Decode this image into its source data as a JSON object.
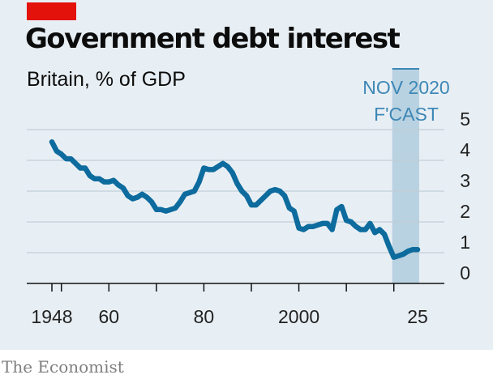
{
  "header": {
    "title": "Government debt interest",
    "subtitle": "Britain, % of GDP"
  },
  "footer": {
    "brand": "The Economist"
  },
  "colors": {
    "background": "#e8eff4",
    "line": "#0d6b9e",
    "forecast_band": "#a9c8db",
    "forecast_text": "#3d87b6",
    "brand_red": "#e3120b",
    "grid": "#c2cdd6"
  },
  "chart_data": {
    "type": "line",
    "title": "Government debt interest",
    "subtitle": "Britain, % of GDP",
    "xlabel": "",
    "ylabel": "",
    "xlim": [
      1946,
      2028
    ],
    "ylim": [
      0,
      5
    ],
    "y_ticks": [
      "0",
      "1",
      "2",
      "3",
      "4",
      "5"
    ],
    "x_ticks": [
      {
        "value": 1948,
        "label": "1948"
      },
      {
        "value": 1960,
        "label": "60"
      },
      {
        "value": 1980,
        "label": "80"
      },
      {
        "value": 2000,
        "label": "2000"
      },
      {
        "value": 2025,
        "label": "25"
      }
    ],
    "grid": true,
    "forecast": {
      "start": 2020,
      "end": 2025,
      "label_line1": "NOV 2020",
      "label_line2": "F'CAST"
    },
    "series": [
      {
        "x": [
          1948,
          1949,
          1950,
          1951,
          1952,
          1953,
          1954,
          1955,
          1956,
          1957,
          1958,
          1959,
          1960,
          1961,
          1962,
          1963,
          1964,
          1965,
          1966,
          1967,
          1968,
          1969,
          1970,
          1971,
          1972,
          1973,
          1974,
          1975,
          1976,
          1977,
          1978,
          1979,
          1980,
          1981,
          1982,
          1983,
          1984,
          1985,
          1986,
          1987,
          1988,
          1989,
          1990,
          1991,
          1992,
          1993,
          1994,
          1995,
          1996,
          1997,
          1998,
          1999,
          2000,
          2001,
          2002,
          2003,
          2004,
          2005,
          2006,
          2007,
          2008,
          2009,
          2010,
          2011,
          2012,
          2013,
          2014,
          2015,
          2016,
          2017,
          2018,
          2019,
          2020,
          2021,
          2022,
          2023,
          2024,
          2025
        ],
        "values": [
          4.6,
          4.3,
          4.2,
          4.05,
          4.05,
          3.9,
          3.75,
          3.75,
          3.5,
          3.4,
          3.4,
          3.3,
          3.3,
          3.35,
          3.2,
          3.1,
          2.85,
          2.75,
          2.8,
          2.9,
          2.8,
          2.65,
          2.4,
          2.4,
          2.35,
          2.4,
          2.45,
          2.65,
          2.9,
          2.95,
          3.0,
          3.3,
          3.75,
          3.7,
          3.7,
          3.8,
          3.9,
          3.8,
          3.6,
          3.25,
          3.0,
          2.85,
          2.55,
          2.55,
          2.7,
          2.85,
          3.0,
          3.05,
          3.0,
          2.85,
          2.45,
          2.35,
          1.8,
          1.75,
          1.85,
          1.85,
          1.9,
          1.95,
          1.95,
          1.75,
          2.4,
          2.5,
          2.05,
          2.0,
          1.85,
          1.75,
          1.75,
          1.95,
          1.65,
          1.75,
          1.6,
          1.2,
          0.85,
          0.9,
          0.95,
          1.05,
          1.1,
          1.1
        ]
      }
    ]
  }
}
